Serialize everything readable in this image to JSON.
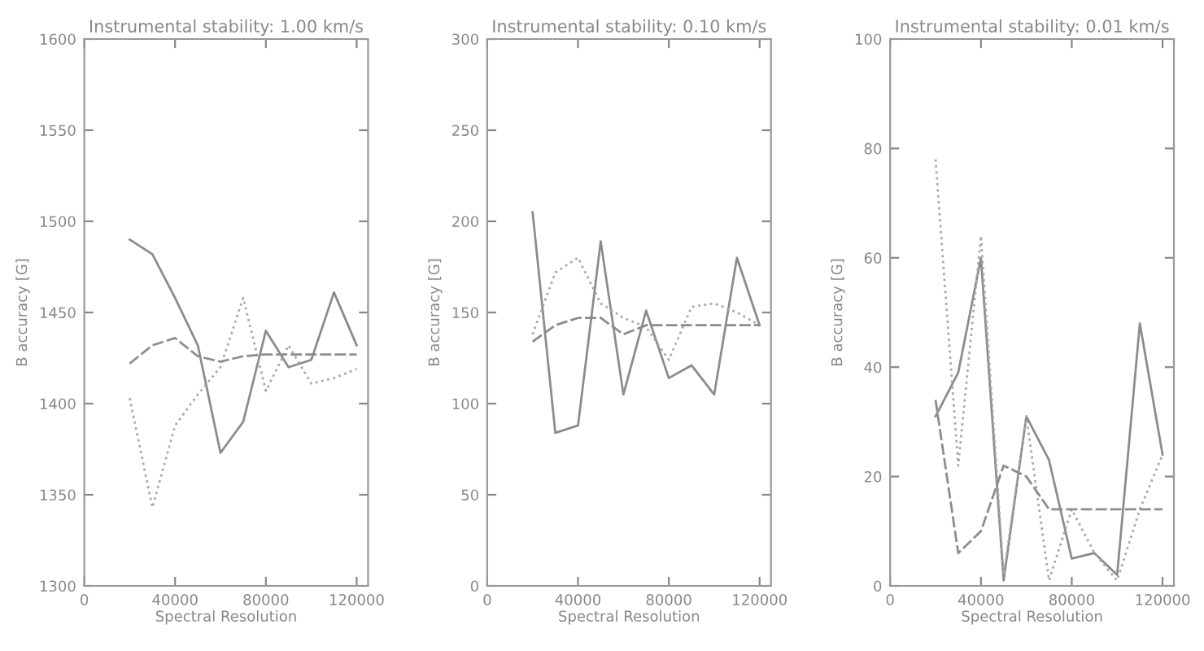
{
  "chart_data": [
    {
      "type": "line",
      "title": "Instrumental stability: 1.00 km/s",
      "xlabel": "Spectral Resolution",
      "ylabel": "B accuracy [G]",
      "x": [
        20000,
        30000,
        40000,
        50000,
        60000,
        70000,
        80000,
        90000,
        100000,
        110000,
        120000
      ],
      "xlim": [
        0,
        125000
      ],
      "xticks": [
        0,
        40000,
        80000,
        120000
      ],
      "ylim": [
        1300,
        1600
      ],
      "yticks": [
        1300,
        1350,
        1400,
        1450,
        1500,
        1550,
        1600
      ],
      "grid": false,
      "legend": false,
      "marker": "none",
      "series": [
        {
          "color": "#8c8c8c",
          "line_style": "solid",
          "values": [
            1490,
            1482,
            1458,
            1432,
            1373,
            1390,
            1440,
            1420,
            1424,
            1461,
            1432
          ]
        },
        {
          "color": "#a8a8a8",
          "line_style": "dotted",
          "values": [
            1403,
            1343,
            1388,
            1405,
            1420,
            1458,
            1407,
            1432,
            1411,
            1414,
            1419
          ]
        },
        {
          "color": "#8c8c8c",
          "line_style": "dashed",
          "values": [
            1422,
            1432,
            1436,
            1426,
            1423,
            1426,
            1427,
            1427,
            1427,
            1427,
            1427
          ]
        }
      ]
    },
    {
      "type": "line",
      "title": "Instrumental stability: 0.10 km/s",
      "xlabel": "Spectral Resolution",
      "ylabel": "B accuracy [G]",
      "x": [
        20000,
        30000,
        40000,
        50000,
        60000,
        70000,
        80000,
        90000,
        100000,
        110000,
        120000
      ],
      "xlim": [
        0,
        125000
      ],
      "xticks": [
        0,
        40000,
        80000,
        120000
      ],
      "ylim": [
        0,
        300
      ],
      "yticks": [
        0,
        50,
        100,
        150,
        200,
        250,
        300
      ],
      "grid": false,
      "legend": false,
      "marker": "none",
      "series": [
        {
          "color": "#8c8c8c",
          "line_style": "solid",
          "values": [
            205,
            84,
            88,
            189,
            105,
            151,
            114,
            121,
            105,
            180,
            143
          ]
        },
        {
          "color": "#a8a8a8",
          "line_style": "dotted",
          "values": [
            138,
            172,
            180,
            155,
            147,
            142,
            124,
            153,
            155,
            150,
            143
          ]
        },
        {
          "color": "#8c8c8c",
          "line_style": "dashed",
          "values": [
            134,
            143,
            147,
            147,
            138,
            143,
            143,
            143,
            143,
            143,
            143
          ]
        }
      ]
    },
    {
      "type": "line",
      "title": "Instrumental stability: 0.01 km/s",
      "xlabel": "Spectral Resolution",
      "ylabel": "B accuracy [G]",
      "x": [
        20000,
        30000,
        40000,
        50000,
        60000,
        70000,
        80000,
        90000,
        100000,
        110000,
        120000
      ],
      "xlim": [
        0,
        125000
      ],
      "xticks": [
        0,
        40000,
        80000,
        120000
      ],
      "ylim": [
        0,
        100
      ],
      "yticks": [
        0,
        20,
        40,
        60,
        80,
        100
      ],
      "grid": false,
      "legend": false,
      "marker": "none",
      "series": [
        {
          "color": "#8c8c8c",
          "line_style": "solid",
          "values": [
            31,
            39,
            60,
            1,
            31,
            23,
            5,
            6,
            2,
            48,
            24
          ]
        },
        {
          "color": "#a8a8a8",
          "line_style": "dotted",
          "values": [
            78,
            22,
            64,
            2,
            31,
            1,
            14,
            6,
            1,
            14,
            24
          ]
        },
        {
          "color": "#8c8c8c",
          "line_style": "dashed",
          "values": [
            34,
            6,
            10,
            22,
            20,
            14,
            14,
            14,
            14,
            14,
            14
          ]
        }
      ]
    }
  ]
}
